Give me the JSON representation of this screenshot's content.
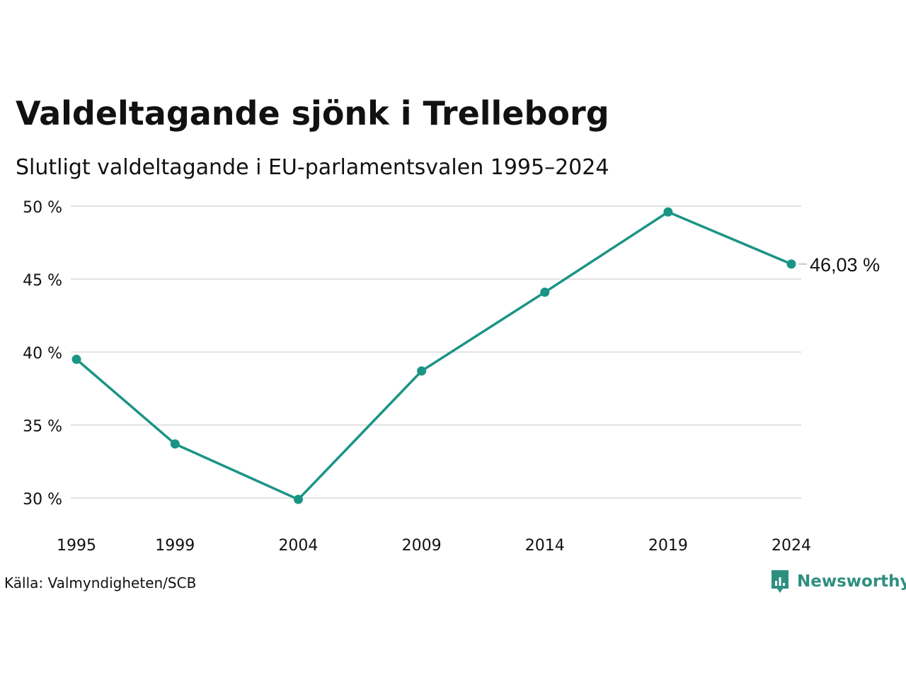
{
  "header": {
    "title": "Valdeltagande sjönk i Trelleborg",
    "subtitle": "Slutligt valdeltagande i EU-parlamentsvalen 1995–2024"
  },
  "chart_data": {
    "type": "line",
    "x": [
      "1995",
      "1999",
      "2004",
      "2009",
      "2014",
      "2019",
      "2024"
    ],
    "series": [
      {
        "values": [
          39.5,
          33.7,
          29.9,
          38.7,
          44.1,
          49.6,
          46.03
        ]
      }
    ],
    "ylim": [
      30,
      50
    ],
    "yticks": [
      50,
      45,
      40,
      35,
      30
    ],
    "ytick_labels": [
      "50 %",
      "45 %",
      "40 %",
      "35 %",
      "30 %"
    ],
    "xlabel": "",
    "ylabel": "",
    "grid": true,
    "last_value_label": "46,03 %",
    "line_color": "#1a9485",
    "grid_color": "#e3e3e3"
  },
  "footer": {
    "source": "Källa: Valmyndigheten/SCB",
    "brand": "Newsworthy",
    "brand_icon": "newsworthy-logo-icon",
    "brand_color": "#2e8f80"
  }
}
